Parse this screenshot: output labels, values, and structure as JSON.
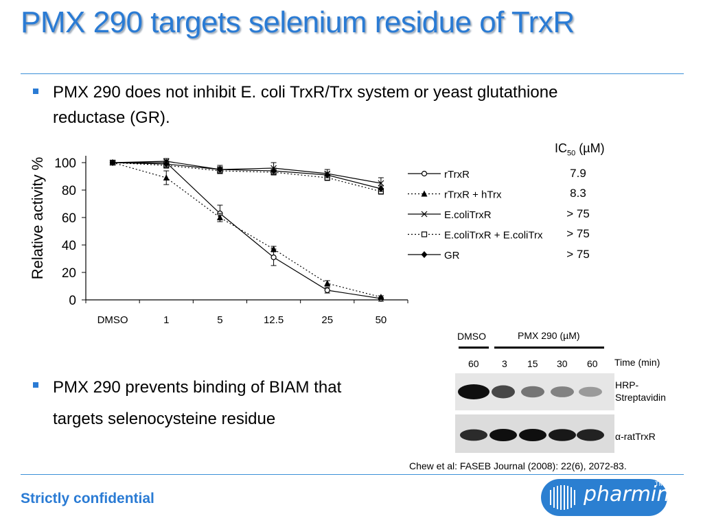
{
  "slide": {
    "title": "PMX 290 targets selenium residue of TrxR",
    "bullets": [
      {
        "line1": "PMX 290 does not inhibit E. coli TrxR/Trx system or yeast glutathione",
        "line2": "reductase (GR)."
      },
      {
        "line1": "PMX 290 prevents binding of BIAM that",
        "line2": "targets selenocysteine residue"
      }
    ],
    "ic50": {
      "label_prefix": "IC",
      "label_sub": "50",
      "label_suffix": " (µM)",
      "values": [
        "7.9",
        "8.3",
        "> 75",
        "> 75",
        "> 75"
      ]
    },
    "citation": "Chew et al:  FASEB Journal (2008): 22(6), 2072-83.",
    "footer": "Strictly confidential",
    "logo_text": "pharminox",
    "logo_tm": "TM"
  },
  "chart_data": {
    "type": "line",
    "ylabel": "Relative activity %",
    "xlabel": "",
    "categories": [
      "DMSO",
      "1",
      "5",
      "12.5",
      "25",
      "50"
    ],
    "ylim": [
      0,
      100
    ],
    "yticks": [
      0,
      20,
      40,
      60,
      80,
      100
    ],
    "legend_position": "right",
    "series": [
      {
        "name": "rTrxR",
        "marker": "open-circle",
        "dash": "solid",
        "values": [
          100,
          100,
          63,
          31,
          7,
          1
        ],
        "err": [
          1,
          2,
          6,
          6,
          2,
          2
        ]
      },
      {
        "name": "rTrxR + hTrx",
        "marker": "triangle",
        "dash": "dotted",
        "values": [
          100,
          89,
          60,
          37,
          12,
          2
        ],
        "err": [
          1,
          5,
          3,
          2,
          2,
          1
        ]
      },
      {
        "name": "E.coliTrxR",
        "marker": "x",
        "dash": "solid",
        "values": [
          100,
          101,
          95,
          96,
          92,
          85
        ],
        "err": [
          1,
          2,
          3,
          4,
          3,
          4
        ]
      },
      {
        "name": "E.coliTrxR + E.coliTrx",
        "marker": "open-square",
        "dash": "dotted",
        "values": [
          100,
          98,
          94,
          93,
          89,
          79
        ],
        "err": [
          1,
          2,
          2,
          2,
          2,
          2
        ]
      },
      {
        "name": "GR",
        "marker": "diamond",
        "dash": "solid",
        "values": [
          100,
          99,
          95,
          94,
          91,
          81
        ],
        "err": [
          1,
          2,
          2,
          2,
          2,
          2
        ]
      }
    ]
  },
  "blot": {
    "dmso_label": "DMSO",
    "pmx_label": "PMX 290 (µM)",
    "time_label": "Time (min)",
    "times": [
      "60",
      "3",
      "15",
      "30",
      "60"
    ],
    "row1_label_line1": "HRP-",
    "row1_label_line2": "Streptavidin",
    "row2_label": "α-ratTrxR",
    "row1_intensity": [
      1.0,
      0.7,
      0.45,
      0.38,
      0.25
    ],
    "row2_intensity": [
      0.85,
      1.0,
      1.0,
      0.95,
      0.9
    ]
  }
}
